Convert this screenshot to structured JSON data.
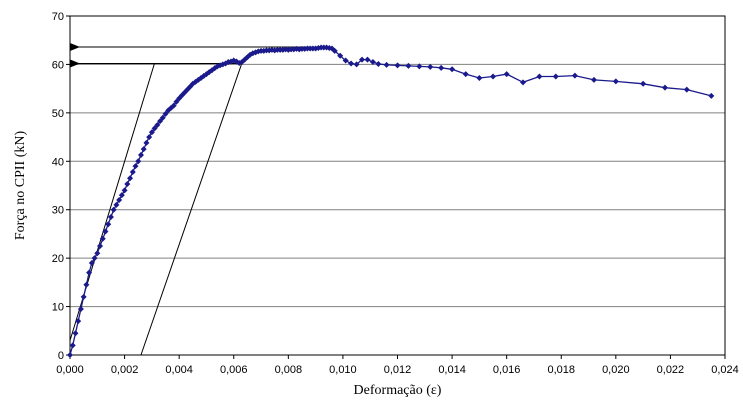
{
  "chart_data": {
    "type": "scatter",
    "title": "",
    "xlabel": "Deformação (ε)",
    "ylabel": "Força no CPII (kN)",
    "xlim": [
      0,
      0.024
    ],
    "ylim": [
      0,
      70
    ],
    "grid": true,
    "x_ticks": [
      "0,000",
      "0,002",
      "0,004",
      "0,006",
      "0,008",
      "0,010",
      "0,012",
      "0,014",
      "0,016",
      "0,018",
      "0,020",
      "0,022",
      "0,024"
    ],
    "y_ticks": [
      "0",
      "10",
      "20",
      "30",
      "40",
      "50",
      "60",
      "70"
    ],
    "series": [
      {
        "color": "#1a1a8c",
        "marker": "diamond",
        "points": [
          [
            0.0,
            0.0
          ],
          [
            0.0001,
            2.0
          ],
          [
            0.0002,
            4.5
          ],
          [
            0.0003,
            7.0
          ],
          [
            0.0004,
            9.5
          ],
          [
            0.0005,
            12.0
          ],
          [
            0.0006,
            14.5
          ],
          [
            0.0007,
            17.0
          ],
          [
            0.0008,
            19.0
          ],
          [
            0.0009,
            20.0
          ],
          [
            0.001,
            21.0
          ],
          [
            0.0011,
            22.5
          ],
          [
            0.0012,
            24.0
          ],
          [
            0.0013,
            25.5
          ],
          [
            0.0014,
            27.0
          ],
          [
            0.0015,
            28.5
          ],
          [
            0.0016,
            30.0
          ],
          [
            0.0017,
            31.0
          ],
          [
            0.0018,
            32.0
          ],
          [
            0.0019,
            33.0
          ],
          [
            0.002,
            34.0
          ],
          [
            0.0021,
            35.3
          ],
          [
            0.0022,
            36.5
          ],
          [
            0.0023,
            37.8
          ],
          [
            0.0024,
            39.0
          ],
          [
            0.0025,
            40.0
          ],
          [
            0.0026,
            41.3
          ],
          [
            0.0027,
            42.5
          ],
          [
            0.0028,
            43.8
          ],
          [
            0.0029,
            45.0
          ],
          [
            0.003,
            46.0
          ],
          [
            0.0031,
            46.8
          ],
          [
            0.0032,
            47.5
          ],
          [
            0.0033,
            48.3
          ],
          [
            0.0034,
            49.0
          ],
          [
            0.0035,
            49.8
          ],
          [
            0.0036,
            50.5
          ],
          [
            0.0037,
            51.0
          ],
          [
            0.0038,
            51.5
          ],
          [
            0.0039,
            52.3
          ],
          [
            0.004,
            53.0
          ],
          [
            0.0041,
            53.6
          ],
          [
            0.0042,
            54.2
          ],
          [
            0.0043,
            54.8
          ],
          [
            0.0044,
            55.4
          ],
          [
            0.0045,
            56.0
          ],
          [
            0.0046,
            56.4
          ],
          [
            0.0047,
            56.8
          ],
          [
            0.0048,
            57.2
          ],
          [
            0.0049,
            57.6
          ],
          [
            0.005,
            58.0
          ],
          [
            0.0051,
            58.4
          ],
          [
            0.0052,
            58.8
          ],
          [
            0.0053,
            59.2
          ],
          [
            0.0054,
            59.6
          ],
          [
            0.0055,
            59.8
          ],
          [
            0.0056,
            60.0
          ],
          [
            0.0057,
            60.2
          ],
          [
            0.0058,
            60.5
          ],
          [
            0.0059,
            60.6
          ],
          [
            0.006,
            60.8
          ],
          [
            0.0061,
            60.6
          ],
          [
            0.0062,
            60.3
          ],
          [
            0.0063,
            60.5
          ],
          [
            0.0064,
            61.0
          ],
          [
            0.0065,
            61.5
          ],
          [
            0.0066,
            62.0
          ],
          [
            0.0067,
            62.3
          ],
          [
            0.0068,
            62.5
          ],
          [
            0.0069,
            62.7
          ],
          [
            0.007,
            62.8
          ],
          [
            0.0071,
            62.8
          ],
          [
            0.0072,
            62.9
          ],
          [
            0.0073,
            62.9
          ],
          [
            0.0074,
            63.0
          ],
          [
            0.0075,
            62.9
          ],
          [
            0.0076,
            63.0
          ],
          [
            0.0077,
            63.0
          ],
          [
            0.0078,
            63.0
          ],
          [
            0.0079,
            63.1
          ],
          [
            0.008,
            63.0
          ],
          [
            0.0081,
            63.1
          ],
          [
            0.0082,
            63.1
          ],
          [
            0.0083,
            63.2
          ],
          [
            0.0084,
            63.1
          ],
          [
            0.0085,
            63.2
          ],
          [
            0.0086,
            63.2
          ],
          [
            0.0087,
            63.3
          ],
          [
            0.0088,
            63.3
          ],
          [
            0.0089,
            63.3
          ],
          [
            0.009,
            63.3
          ],
          [
            0.0091,
            63.4
          ],
          [
            0.0092,
            63.5
          ],
          [
            0.0093,
            63.5
          ],
          [
            0.0094,
            63.5
          ],
          [
            0.0095,
            63.4
          ],
          [
            0.0096,
            63.3
          ],
          [
            0.0097,
            62.8
          ],
          [
            0.0099,
            61.8
          ],
          [
            0.0101,
            60.8
          ],
          [
            0.0103,
            60.2
          ],
          [
            0.0105,
            60.0
          ],
          [
            0.0107,
            61.0
          ],
          [
            0.0109,
            61.0
          ],
          [
            0.0111,
            60.5
          ],
          [
            0.0113,
            60.1
          ],
          [
            0.0116,
            59.9
          ],
          [
            0.012,
            59.8
          ],
          [
            0.0124,
            59.7
          ],
          [
            0.0128,
            59.6
          ],
          [
            0.0132,
            59.5
          ],
          [
            0.0136,
            59.3
          ],
          [
            0.014,
            59.0
          ],
          [
            0.0145,
            58.0
          ],
          [
            0.015,
            57.2
          ],
          [
            0.0155,
            57.5
          ],
          [
            0.016,
            58.0
          ],
          [
            0.0166,
            56.3
          ],
          [
            0.0172,
            57.5
          ],
          [
            0.0178,
            57.5
          ],
          [
            0.0185,
            57.7
          ],
          [
            0.0192,
            56.8
          ],
          [
            0.02,
            56.5
          ],
          [
            0.021,
            56.0
          ],
          [
            0.0218,
            55.2
          ],
          [
            0.0226,
            54.8
          ],
          [
            0.0235,
            53.5
          ]
        ]
      }
    ],
    "annotations": {
      "arrows": [
        {
          "from": [
            0.0095,
            63.6
          ],
          "to": [
            0.0,
            63.6
          ]
        },
        {
          "from": [
            0.0063,
            60.2
          ],
          "to": [
            0.0,
            60.2
          ]
        }
      ],
      "lines": [
        {
          "from": [
            0.0,
            3.0
          ],
          "to": [
            0.0031,
            60.3
          ]
        },
        {
          "from": [
            0.0026,
            0.0
          ],
          "to": [
            0.0063,
            60.3
          ]
        }
      ]
    }
  }
}
